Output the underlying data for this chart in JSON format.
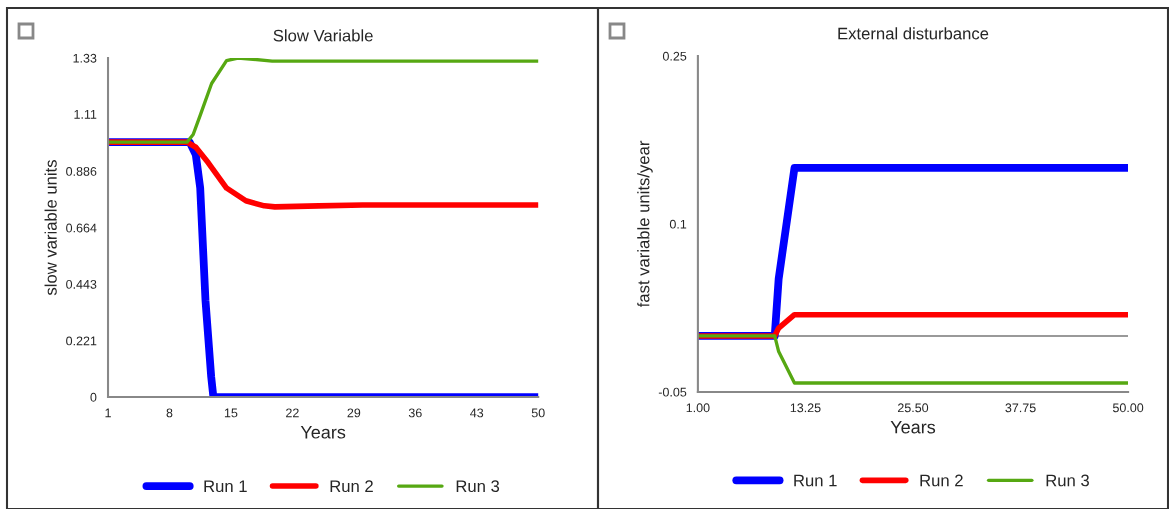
{
  "chart_data": [
    {
      "type": "line",
      "title": "Slow Variable",
      "xlabel": "Years",
      "ylabel": "slow variable units",
      "xlim": [
        1,
        50
      ],
      "xticks": [
        1,
        8,
        15,
        22,
        29,
        36,
        43,
        50
      ],
      "ylim": [
        0,
        1.33
      ],
      "yticks": [
        0,
        0.221,
        0.443,
        0.664,
        0.886,
        1.11,
        1.33
      ],
      "legend": "bottom",
      "grid": false,
      "series": [
        {
          "name": "Run 1",
          "color": "#0000ff",
          "x": [
            1,
            10.3,
            11,
            11.5,
            12.1,
            12.75,
            13,
            50
          ],
          "values": [
            1.0,
            1.0,
            0.95,
            0.82,
            0.38,
            0.08,
            0,
            0
          ]
        },
        {
          "name": "Run 2",
          "color": "#ff0000",
          "x": [
            1,
            10,
            11,
            12.4,
            14.5,
            16.7,
            18.8,
            20,
            25,
            30,
            50
          ],
          "values": [
            1.0,
            1.0,
            0.98,
            0.92,
            0.82,
            0.77,
            0.75,
            0.746,
            0.75,
            0.753,
            0.753
          ]
        },
        {
          "name": "Run 3",
          "color": "#56a812",
          "x": [
            1,
            10,
            10.7,
            11.55,
            12.8,
            14.5,
            15.8,
            17.9,
            19.7,
            50
          ],
          "values": [
            1.0,
            1.0,
            1.03,
            1.11,
            1.23,
            1.32,
            1.33,
            1.324,
            1.318,
            1.318
          ]
        }
      ]
    },
    {
      "type": "line",
      "title": "External disturbance",
      "xlabel": "Years",
      "ylabel": "fast variable units/year",
      "xlim": [
        1,
        50
      ],
      "xticks": [
        {
          "value": 1,
          "label": "1.00"
        },
        {
          "value": 13.25,
          "label": "13.25"
        },
        {
          "value": 25.5,
          "label": "25.50"
        },
        {
          "value": 37.75,
          "label": "37.75"
        },
        {
          "value": 50,
          "label": "50.00"
        }
      ],
      "ylim": [
        -0.05,
        0.25
      ],
      "yticks": [
        -0.05,
        0.1,
        0.25
      ],
      "legend": "bottom",
      "grid": false,
      "ref_lines": [
        {
          "axis": "y",
          "value": 0,
          "color": "#999999"
        }
      ],
      "series": [
        {
          "name": "Run 1",
          "color": "#0000ff",
          "x": [
            1,
            9.75,
            10.2,
            12.0,
            50
          ],
          "values": [
            0,
            0,
            0.051,
            0.15,
            0.15
          ]
        },
        {
          "name": "Run 2",
          "color": "#ff0000",
          "x": [
            1,
            9.75,
            10.2,
            12.0,
            50
          ],
          "values": [
            0,
            0,
            0.007,
            0.019,
            0.019
          ]
        },
        {
          "name": "Run 3",
          "color": "#56a812",
          "x": [
            1,
            9.75,
            10.2,
            12.0,
            50
          ],
          "values": [
            0,
            0,
            -0.014,
            -0.042,
            -0.042
          ]
        }
      ]
    }
  ]
}
